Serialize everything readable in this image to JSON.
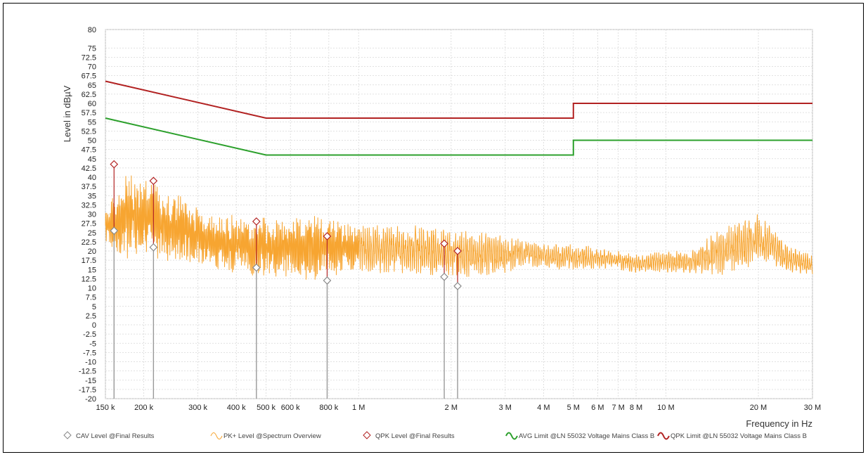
{
  "chart_data": {
    "type": "line",
    "xlabel": "Frequency in Hz",
    "ylabel": "Level in dBµV",
    "x_scale": "log",
    "xlim": [
      150000,
      30000000
    ],
    "ylim": [
      -20,
      80
    ],
    "grid": true,
    "y_ticks": [
      -20,
      -17.5,
      -15,
      -12.5,
      -10,
      -7.5,
      -5,
      -2.5,
      0,
      2.5,
      5,
      7.5,
      10,
      12.5,
      15,
      17.5,
      20,
      22.5,
      25,
      27.5,
      30,
      32.5,
      35,
      37.5,
      40,
      42.5,
      45,
      47.5,
      50,
      52.5,
      55,
      57.5,
      60,
      62.5,
      65,
      67.5,
      70,
      72.5,
      75,
      80
    ],
    "x_ticks": [
      {
        "value": 150000,
        "label": "150 k"
      },
      {
        "value": 200000,
        "label": "200 k"
      },
      {
        "value": 300000,
        "label": "300 k"
      },
      {
        "value": 400000,
        "label": "400 k"
      },
      {
        "value": 500000,
        "label": "500 k"
      },
      {
        "value": 600000,
        "label": "600 k"
      },
      {
        "value": 800000,
        "label": "800 k"
      },
      {
        "value": 1000000,
        "label": "1 M"
      },
      {
        "value": 2000000,
        "label": "2 M"
      },
      {
        "value": 3000000,
        "label": "3 M"
      },
      {
        "value": 4000000,
        "label": "4 M"
      },
      {
        "value": 5000000,
        "label": "5 M"
      },
      {
        "value": 6000000,
        "label": "6 M"
      },
      {
        "value": 7000000,
        "label": "7 M"
      },
      {
        "value": 8000000,
        "label": "8 M"
      },
      {
        "value": 10000000,
        "label": "10 M"
      },
      {
        "value": 20000000,
        "label": "20 M"
      },
      {
        "value": 30000000,
        "label": "30 M"
      }
    ],
    "series": [
      {
        "name": "QPK Limit @LN 55032 Voltage Mains Class B",
        "color": "#b22222",
        "points": [
          [
            150000,
            66
          ],
          [
            500000,
            56
          ],
          [
            5000000,
            56
          ],
          [
            5000000,
            60
          ],
          [
            30000000,
            60
          ]
        ]
      },
      {
        "name": "AVG Limit @LN 55032 Voltage Mains Class B",
        "color": "#2ca02c",
        "points": [
          [
            150000,
            56
          ],
          [
            500000,
            46
          ],
          [
            5000000,
            46
          ],
          [
            5000000,
            50
          ],
          [
            30000000,
            50
          ]
        ]
      },
      {
        "name": "PK+ Level @Spectrum Overview",
        "color": "#f7a531",
        "envelope": [
          [
            150000,
            32,
            22
          ],
          [
            165000,
            37,
            18
          ],
          [
            180000,
            42,
            18
          ],
          [
            200000,
            40,
            20
          ],
          [
            220000,
            38,
            18
          ],
          [
            250000,
            36,
            17
          ],
          [
            300000,
            32,
            17
          ],
          [
            350000,
            29,
            15
          ],
          [
            400000,
            30,
            14
          ],
          [
            450000,
            29,
            13
          ],
          [
            500000,
            29,
            13
          ],
          [
            600000,
            29,
            13
          ],
          [
            700000,
            30,
            12
          ],
          [
            800000,
            29,
            13
          ],
          [
            900000,
            28,
            14
          ],
          [
            1000000,
            27,
            14
          ],
          [
            1500000,
            27,
            14
          ],
          [
            2000000,
            26,
            13
          ],
          [
            2500000,
            25,
            13
          ],
          [
            3000000,
            24,
            14
          ],
          [
            3500000,
            23,
            16
          ],
          [
            4000000,
            22,
            15
          ],
          [
            5000000,
            22,
            15
          ],
          [
            6000000,
            21,
            15
          ],
          [
            7000000,
            20,
            15
          ],
          [
            8000000,
            19,
            14
          ],
          [
            10000000,
            20,
            14
          ],
          [
            12000000,
            20,
            14
          ],
          [
            15000000,
            26,
            13
          ],
          [
            18000000,
            29,
            15
          ],
          [
            20000000,
            30,
            17
          ],
          [
            22000000,
            27,
            16
          ],
          [
            25000000,
            22,
            14
          ],
          [
            30000000,
            19,
            13
          ]
        ]
      },
      {
        "name": "QPK Level @Final Results",
        "color": "#b22222",
        "points": [
          [
            160000,
            43.5
          ],
          [
            215000,
            39
          ],
          [
            465000,
            28
          ],
          [
            790000,
            24
          ],
          [
            1900000,
            22
          ],
          [
            2100000,
            20
          ]
        ]
      },
      {
        "name": "CAV Level @Final Results",
        "color": "#888888",
        "points": [
          [
            160000,
            25.5
          ],
          [
            215000,
            21
          ],
          [
            465000,
            15.5
          ],
          [
            790000,
            12
          ],
          [
            1900000,
            13
          ],
          [
            2100000,
            10.5
          ]
        ]
      }
    ],
    "legend": {
      "placement": "bottom",
      "entries": [
        {
          "label": "CAV Level @Final Results",
          "color": "#888888",
          "marker": "diamond"
        },
        {
          "label": "PK+ Level @Spectrum Overview",
          "color": "#f7a531",
          "marker": "line"
        },
        {
          "label": "QPK Level @Final Results",
          "color": "#b22222",
          "marker": "diamond"
        },
        {
          "label": "AVG Limit @LN 55032 Voltage Mains Class B",
          "color": "#2ca02c",
          "marker": "line"
        },
        {
          "label": "QPK Limit @LN 55032 Voltage Mains Class B",
          "color": "#b22222",
          "marker": "line"
        }
      ]
    }
  }
}
